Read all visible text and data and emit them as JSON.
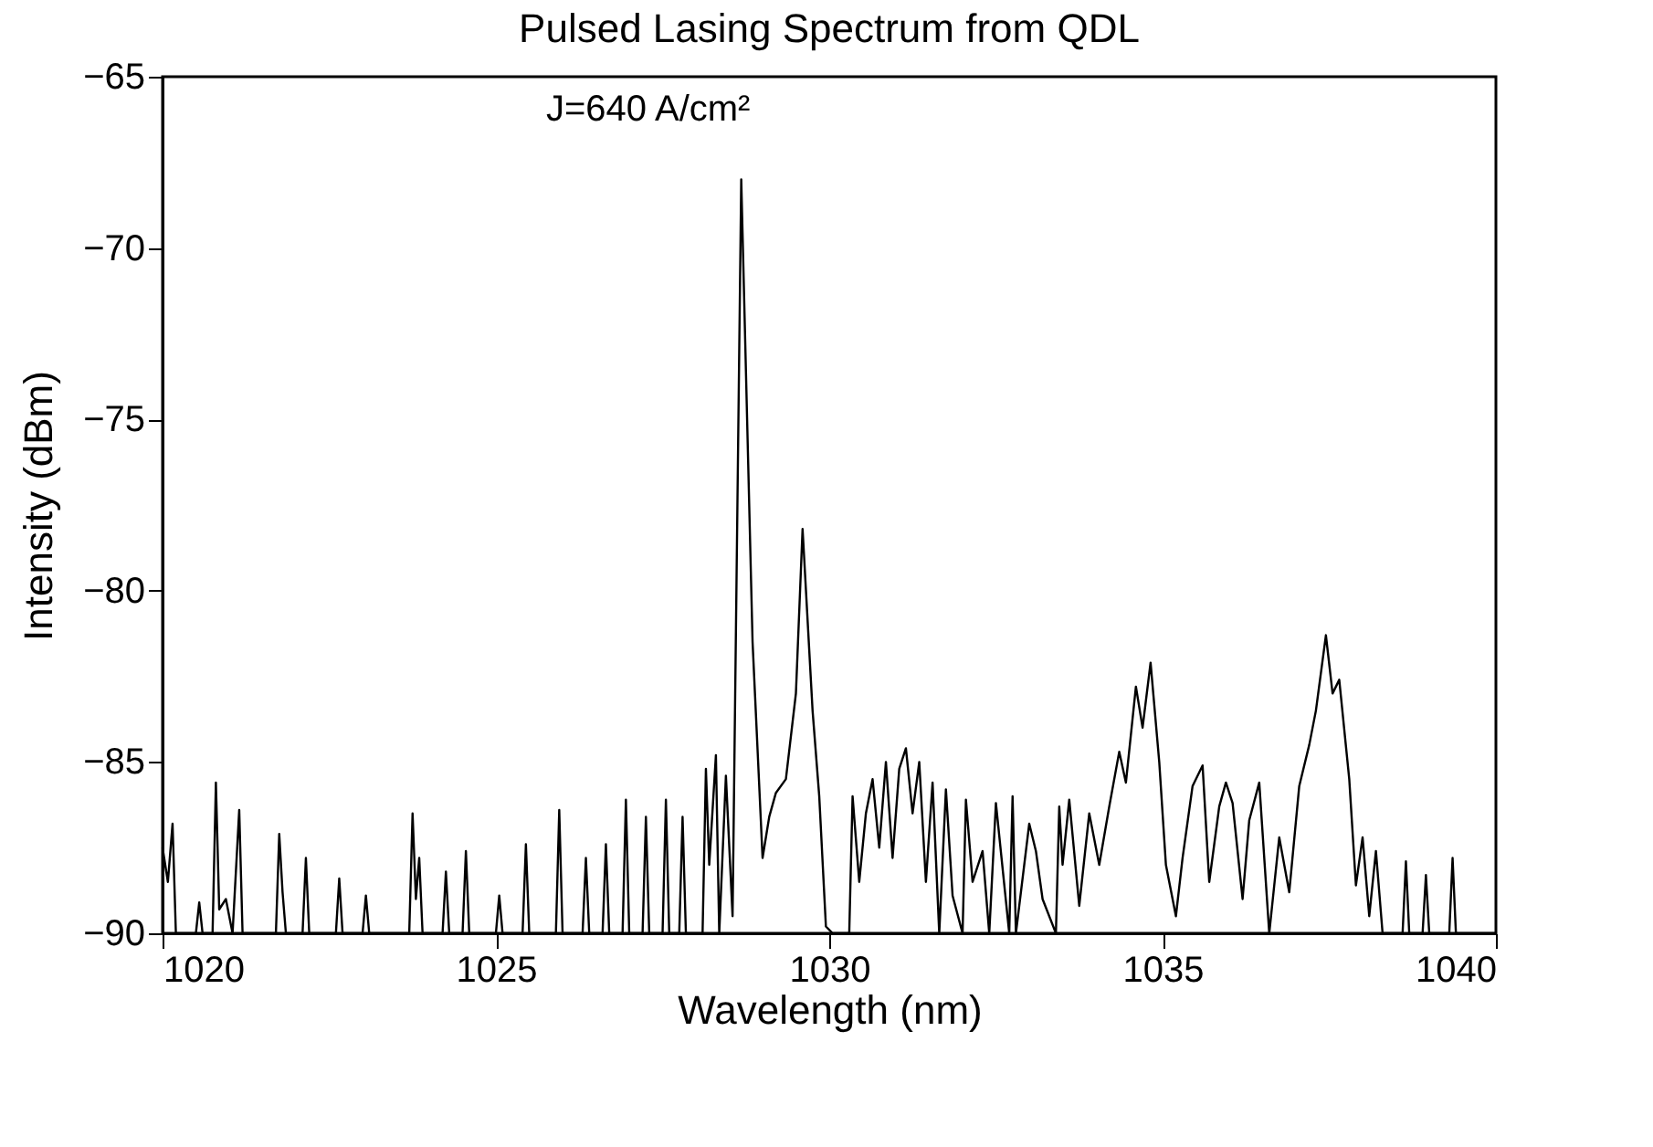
{
  "chart_data": {
    "type": "line",
    "title": "Pulsed Lasing Spectrum from QDL",
    "xlabel": "Wavelength (nm)",
    "ylabel": "Intensity (dBm)",
    "annotations": [
      "J=640 A/cm²"
    ],
    "xlim": [
      1020,
      1040
    ],
    "xticks": [
      1020,
      1025,
      1030,
      1035,
      1040
    ],
    "ylim": [
      -90,
      -65
    ],
    "yticks": [
      -90,
      -85,
      -80,
      -75,
      -70,
      -65
    ],
    "grid": false,
    "series": [
      {
        "color": "#000000",
        "x": [
          1020.0,
          1020.08,
          1020.15,
          1020.2,
          1020.5,
          1020.55,
          1020.6,
          1020.75,
          1020.8,
          1020.85,
          1020.95,
          1021.05,
          1021.15,
          1021.2,
          1021.7,
          1021.75,
          1021.8,
          1021.85,
          1022.1,
          1022.15,
          1022.2,
          1022.6,
          1022.65,
          1022.7,
          1023.0,
          1023.05,
          1023.1,
          1023.7,
          1023.75,
          1023.8,
          1023.85,
          1023.9,
          1024.2,
          1024.25,
          1024.3,
          1024.5,
          1024.55,
          1024.6,
          1025.0,
          1025.05,
          1025.1,
          1025.4,
          1025.45,
          1025.5,
          1025.9,
          1025.95,
          1026.0,
          1026.3,
          1026.35,
          1026.4,
          1026.6,
          1026.65,
          1026.7,
          1026.9,
          1026.95,
          1027.0,
          1027.2,
          1027.25,
          1027.3,
          1027.5,
          1027.55,
          1027.6,
          1027.75,
          1027.8,
          1027.85,
          1028.1,
          1028.15,
          1028.2,
          1028.3,
          1028.35,
          1028.45,
          1028.55,
          1028.68,
          1028.85,
          1029.0,
          1029.1,
          1029.2,
          1029.35,
          1029.5,
          1029.6,
          1029.75,
          1029.85,
          1029.95,
          1030.05,
          1030.3,
          1030.35,
          1030.45,
          1030.55,
          1030.65,
          1030.75,
          1030.85,
          1030.95,
          1031.05,
          1031.15,
          1031.25,
          1031.35,
          1031.45,
          1031.55,
          1031.65,
          1031.75,
          1031.85,
          1032.0,
          1032.05,
          1032.15,
          1032.3,
          1032.4,
          1032.5,
          1032.7,
          1032.75,
          1032.8,
          1033.0,
          1033.1,
          1033.2,
          1033.4,
          1033.45,
          1033.5,
          1033.6,
          1033.75,
          1033.9,
          1034.05,
          1034.2,
          1034.35,
          1034.45,
          1034.6,
          1034.7,
          1034.82,
          1034.95,
          1035.05,
          1035.2,
          1035.3,
          1035.45,
          1035.6,
          1035.7,
          1035.85,
          1035.95,
          1036.05,
          1036.2,
          1036.3,
          1036.45,
          1036.6,
          1036.75,
          1036.9,
          1037.05,
          1037.2,
          1037.3,
          1037.45,
          1037.55,
          1037.65,
          1037.8,
          1037.9,
          1038.0,
          1038.1,
          1038.2,
          1038.3,
          1038.6,
          1038.65,
          1038.7,
          1038.9,
          1038.95,
          1039.0,
          1039.3,
          1039.35,
          1039.4,
          1040.0
        ],
        "values": [
          -87.5,
          -88.5,
          -86.8,
          -90,
          -90,
          -89.1,
          -90,
          -90,
          -85.6,
          -89.3,
          -89.0,
          -90,
          -86.4,
          -90,
          -90,
          -87.1,
          -88.8,
          -90,
          -90,
          -87.8,
          -90,
          -90,
          -88.4,
          -90,
          -90,
          -88.9,
          -90,
          -90,
          -86.5,
          -89.0,
          -87.8,
          -90,
          -90,
          -88.2,
          -90,
          -90,
          -87.6,
          -90,
          -90,
          -88.9,
          -90,
          -90,
          -87.4,
          -90,
          -90,
          -86.4,
          -90,
          -90,
          -87.8,
          -90,
          -90,
          -87.4,
          -90,
          -90,
          -86.1,
          -90,
          -90,
          -86.6,
          -90,
          -90,
          -86.1,
          -90,
          -90,
          -86.6,
          -90,
          -90,
          -85.2,
          -88.0,
          -84.8,
          -90,
          -85.4,
          -89.5,
          -68.0,
          -81.5,
          -87.8,
          -86.6,
          -85.9,
          -85.5,
          -83.0,
          -78.2,
          -83.5,
          -86.0,
          -89.8,
          -90,
          -90,
          -86.0,
          -88.5,
          -86.5,
          -85.5,
          -87.5,
          -85.0,
          -87.8,
          -85.2,
          -84.6,
          -86.5,
          -85.0,
          -88.5,
          -85.6,
          -90,
          -85.8,
          -88.9,
          -90,
          -86.1,
          -88.5,
          -87.6,
          -90,
          -86.2,
          -90,
          -86.0,
          -90,
          -86.8,
          -87.6,
          -89.0,
          -90,
          -86.3,
          -88.0,
          -86.1,
          -89.2,
          -86.5,
          -88.0,
          -86.3,
          -84.7,
          -85.6,
          -82.8,
          -84.0,
          -82.1,
          -85.0,
          -88.0,
          -89.5,
          -87.8,
          -85.7,
          -85.1,
          -88.5,
          -86.3,
          -85.6,
          -86.2,
          -89.0,
          -86.7,
          -85.6,
          -90,
          -87.2,
          -88.8,
          -85.7,
          -84.5,
          -83.5,
          -81.3,
          -83.0,
          -82.6,
          -85.5,
          -88.6,
          -87.2,
          -89.5,
          -87.6,
          -90,
          -90,
          -87.9,
          -90,
          -90,
          -88.3,
          -90,
          -90,
          -87.8,
          -90,
          -90
        ]
      }
    ]
  }
}
